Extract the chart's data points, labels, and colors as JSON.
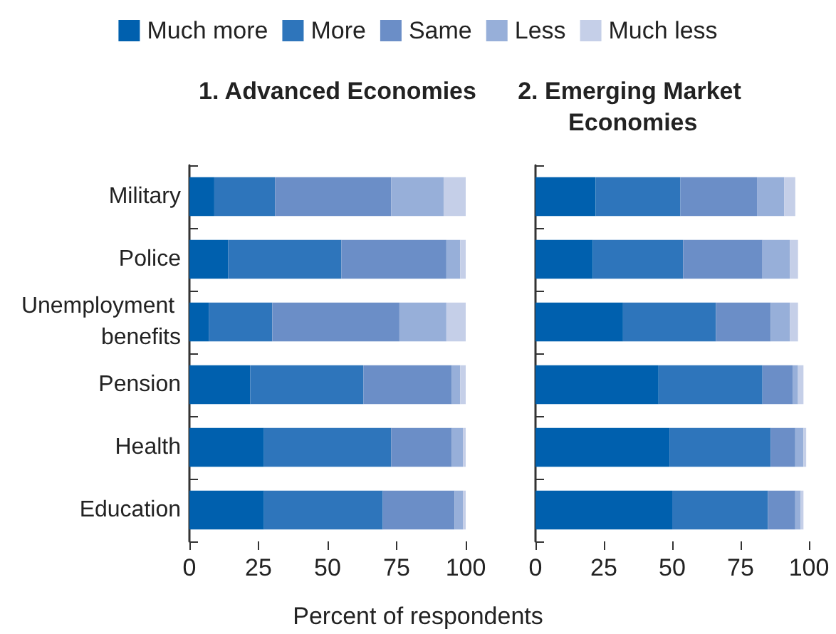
{
  "chart_data": [
    {
      "type": "bar",
      "orientation": "horizontal",
      "stacked": true,
      "title": "1. Advanced Economies",
      "xlabel": "Percent of respondents",
      "legend": "top",
      "categories": [
        "Military",
        "Police",
        "Unemployment benefits",
        "Pension",
        "Health",
        "Education"
      ],
      "xlim": [
        0,
        100
      ],
      "xticks": [
        0,
        25,
        50,
        75,
        100
      ],
      "grid": false,
      "series": [
        {
          "name": "Much more",
          "color": "#0060ae",
          "values": [
            9,
            14,
            7,
            22,
            27,
            27
          ]
        },
        {
          "name": "More",
          "color": "#2e75bb",
          "values": [
            22,
            41,
            23,
            41,
            46,
            43
          ]
        },
        {
          "name": "Same",
          "color": "#6b8ec7",
          "values": [
            42,
            38,
            46,
            32,
            22,
            26
          ]
        },
        {
          "name": "Less",
          "color": "#97afd9",
          "values": [
            19,
            5,
            17,
            3,
            4,
            3
          ]
        },
        {
          "name": "Much less",
          "color": "#c5cfe8",
          "values": [
            8,
            2,
            7,
            2,
            1,
            1
          ]
        }
      ]
    },
    {
      "type": "bar",
      "orientation": "horizontal",
      "stacked": true,
      "title": "2. Emerging Market Economies",
      "tick_labels": "x",
      "categories": [
        "Military",
        "Police",
        "Unemployment benefits",
        "Pension",
        "Health",
        "Education"
      ],
      "xlim": [
        0,
        100
      ],
      "xticks": [
        0,
        25,
        50,
        75,
        100
      ],
      "grid": false,
      "series": [
        {
          "color": "#0060ae",
          "values": [
            22,
            21,
            32,
            45,
            49,
            50
          ]
        },
        {
          "color": "#2e75bb",
          "values": [
            31,
            33,
            34,
            38,
            37,
            35
          ]
        },
        {
          "color": "#6b8ec7",
          "values": [
            28,
            29,
            20,
            11,
            9,
            10
          ]
        },
        {
          "color": "#97afd9",
          "values": [
            10,
            10,
            7,
            2,
            3,
            2
          ]
        },
        {
          "color": "#c5cfe8",
          "values": [
            4,
            3,
            3,
            2,
            1,
            1
          ]
        }
      ]
    }
  ]
}
